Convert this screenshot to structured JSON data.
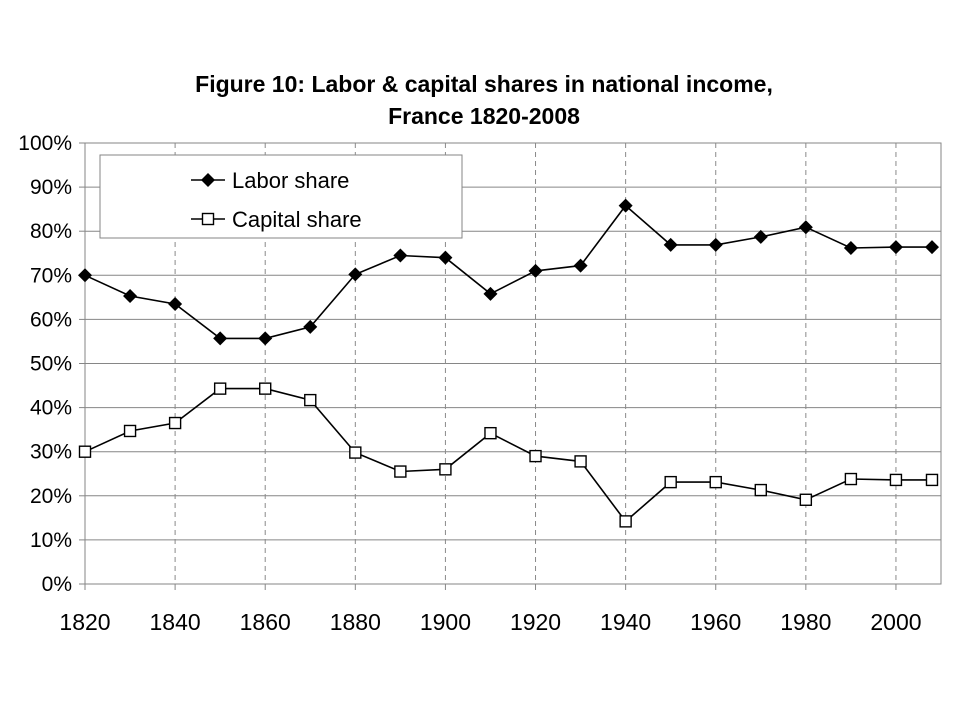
{
  "chart_data": {
    "type": "line",
    "title": "Figure 10: Labor & capital shares in national income,",
    "subtitle": "France 1820-2008",
    "xlabel": "",
    "ylabel": "",
    "xlim": [
      1820,
      2010
    ],
    "ylim": [
      0,
      100
    ],
    "x_ticks": [
      "1820",
      "1840",
      "1860",
      "1880",
      "1900",
      "1920",
      "1940",
      "1960",
      "1980",
      "2000"
    ],
    "y_ticks": [
      "0%",
      "10%",
      "20%",
      "30%",
      "40%",
      "50%",
      "60%",
      "70%",
      "80%",
      "90%",
      "100%"
    ],
    "grid": {
      "horizontal": true,
      "vertical_dashed": true
    },
    "legend_position": "top-left",
    "x": [
      1820,
      1830,
      1840,
      1850,
      1860,
      1870,
      1880,
      1890,
      1900,
      1910,
      1920,
      1930,
      1940,
      1950,
      1960,
      1970,
      1980,
      1990,
      2000,
      2008
    ],
    "series": [
      {
        "name": "Labor share",
        "marker": "filled-diamond",
        "color": "#000000",
        "values": [
          70,
          65.3,
          63.5,
          55.7,
          55.7,
          58.3,
          70.2,
          74.5,
          74,
          65.8,
          71,
          72.2,
          85.8,
          76.9,
          76.9,
          78.7,
          80.9,
          76.2,
          76.4,
          76.4
        ]
      },
      {
        "name": "Capital share",
        "marker": "open-square",
        "color": "#000000",
        "values": [
          30,
          34.7,
          36.5,
          44.3,
          44.3,
          41.7,
          29.8,
          25.5,
          26,
          34.2,
          29,
          27.8,
          14.2,
          23.1,
          23.1,
          21.3,
          19.1,
          23.8,
          23.6,
          23.6
        ]
      }
    ]
  }
}
